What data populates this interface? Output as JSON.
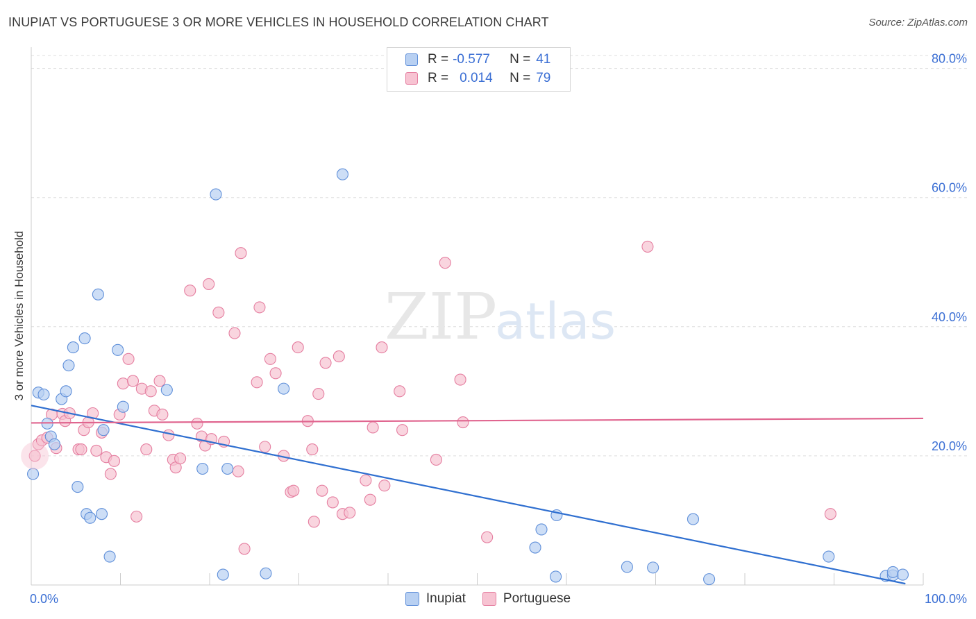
{
  "title": "INUPIAT VS PORTUGUESE 3 OR MORE VEHICLES IN HOUSEHOLD CORRELATION CHART",
  "source": "Source: ZipAtlas.com",
  "watermark": {
    "zip": "ZIP",
    "atlas": "atlas"
  },
  "legend_top": {
    "rows": [
      {
        "r_label": "R =",
        "r_value": "-0.577",
        "n_label": "N =",
        "n_value": "41",
        "fill": "#b8d0f2",
        "stroke": "#5f8fd9"
      },
      {
        "r_label": "R =",
        "r_value": "0.014",
        "n_label": "N =",
        "n_value": "79",
        "fill": "#f7c3d2",
        "stroke": "#e57ea0"
      }
    ]
  },
  "legend_bottom": [
    {
      "label": "Inupiat",
      "fill": "#b8d0f2",
      "stroke": "#5f8fd9"
    },
    {
      "label": "Portuguese",
      "fill": "#f7c3d2",
      "stroke": "#e57ea0"
    }
  ],
  "chart_data": {
    "type": "scatter",
    "title": "INUPIAT VS PORTUGUESE 3 OR MORE VEHICLES IN HOUSEHOLD CORRELATION CHART",
    "xlabel": "",
    "ylabel": "3 or more Vehicles in Household",
    "xlim": [
      0,
      100
    ],
    "ylim": [
      0,
      82
    ],
    "x_tick_labels": [
      "0.0%",
      "100.0%"
    ],
    "y_ticks": [
      20,
      40,
      60,
      80
    ],
    "y_tick_labels": [
      "20.0%",
      "40.0%",
      "60.0%",
      "80.0%"
    ],
    "grid": true,
    "legend_position": "top-center",
    "series": [
      {
        "name": "Inupiat",
        "color": "#5f8fd9",
        "fill": "#b8d0f2",
        "line_color": "#2f6fd0",
        "trend": {
          "x": [
            0,
            98
          ],
          "y": [
            27.8,
            0.2
          ]
        },
        "points": [
          [
            0.2,
            17.2
          ],
          [
            0.8,
            29.8
          ],
          [
            1.4,
            29.5
          ],
          [
            1.8,
            25
          ],
          [
            2.2,
            23
          ],
          [
            2.6,
            21.8
          ],
          [
            3.4,
            28.8
          ],
          [
            3.9,
            30
          ],
          [
            4.2,
            34
          ],
          [
            4.7,
            36.8
          ],
          [
            5.2,
            15.2
          ],
          [
            6.0,
            38.2
          ],
          [
            6.2,
            11
          ],
          [
            6.6,
            10.4
          ],
          [
            7.5,
            45
          ],
          [
            7.9,
            11
          ],
          [
            8.1,
            24
          ],
          [
            8.8,
            4.4
          ],
          [
            9.7,
            36.4
          ],
          [
            10.3,
            27.6
          ],
          [
            15.2,
            30.2
          ],
          [
            19.2,
            18
          ],
          [
            20.7,
            60.5
          ],
          [
            21.5,
            1.6
          ],
          [
            22.0,
            18
          ],
          [
            26.3,
            1.8
          ],
          [
            28.3,
            30.4
          ],
          [
            34.9,
            63.6
          ],
          [
            56.5,
            5.8
          ],
          [
            57.2,
            8.6
          ],
          [
            58.8,
            1.3
          ],
          [
            58.9,
            10.8
          ],
          [
            66.8,
            2.8
          ],
          [
            69.7,
            2.7
          ],
          [
            74.2,
            10.2
          ],
          [
            76.0,
            0.9
          ],
          [
            89.4,
            4.4
          ],
          [
            95.8,
            1.4
          ],
          [
            96.6,
            1.5
          ],
          [
            96.6,
            2.0
          ],
          [
            97.7,
            1.6
          ]
        ]
      },
      {
        "name": "Portuguese",
        "color": "#e57ea0",
        "fill": "#f7c3d2",
        "line_color": "#e0658f",
        "trend": {
          "x": [
            0,
            100
          ],
          "y": [
            25.1,
            25.8
          ]
        },
        "points": [
          [
            0.4,
            20
          ],
          [
            0.8,
            21.8
          ],
          [
            1.2,
            22.4
          ],
          [
            1.8,
            22.8
          ],
          [
            2.3,
            26.4
          ],
          [
            2.8,
            21.2
          ],
          [
            3.5,
            26.5
          ],
          [
            3.8,
            25.4
          ],
          [
            4.3,
            26.6
          ],
          [
            5.3,
            21
          ],
          [
            5.6,
            21
          ],
          [
            5.9,
            24
          ],
          [
            6.4,
            25.2
          ],
          [
            6.9,
            26.6
          ],
          [
            7.3,
            20.8
          ],
          [
            7.9,
            23.6
          ],
          [
            8.4,
            19.8
          ],
          [
            8.9,
            17.2
          ],
          [
            9.3,
            19.2
          ],
          [
            9.9,
            26.4
          ],
          [
            10.3,
            31.2
          ],
          [
            10.9,
            35
          ],
          [
            11.4,
            31.6
          ],
          [
            11.8,
            10.6
          ],
          [
            12.4,
            30.4
          ],
          [
            12.9,
            21
          ],
          [
            13.4,
            30
          ],
          [
            13.8,
            27
          ],
          [
            14.4,
            31.6
          ],
          [
            14.7,
            26.4
          ],
          [
            15.4,
            23.2
          ],
          [
            15.9,
            19.4
          ],
          [
            16.2,
            18.2
          ],
          [
            16.7,
            19.6
          ],
          [
            17.8,
            45.6
          ],
          [
            18.6,
            25
          ],
          [
            19.1,
            23
          ],
          [
            19.5,
            21.6
          ],
          [
            19.9,
            46.6
          ],
          [
            20.2,
            22.6
          ],
          [
            21.0,
            42.2
          ],
          [
            21.6,
            22.2
          ],
          [
            22.8,
            39
          ],
          [
            23.2,
            17.6
          ],
          [
            23.5,
            51.4
          ],
          [
            23.9,
            5.6
          ],
          [
            25.3,
            31.4
          ],
          [
            25.6,
            43
          ],
          [
            26.2,
            21.4
          ],
          [
            26.8,
            35
          ],
          [
            27.4,
            32.8
          ],
          [
            28.3,
            20
          ],
          [
            29.1,
            14.4
          ],
          [
            29.4,
            14.6
          ],
          [
            29.9,
            36.8
          ],
          [
            31.0,
            25.4
          ],
          [
            31.5,
            21
          ],
          [
            31.7,
            9.8
          ],
          [
            32.2,
            29.6
          ],
          [
            32.6,
            14.6
          ],
          [
            33.0,
            34.4
          ],
          [
            33.8,
            12.8
          ],
          [
            34.5,
            35.4
          ],
          [
            34.9,
            11
          ],
          [
            35.7,
            11.2
          ],
          [
            37.5,
            16.2
          ],
          [
            38.0,
            13.2
          ],
          [
            38.3,
            24.4
          ],
          [
            39.3,
            36.8
          ],
          [
            39.6,
            15.4
          ],
          [
            41.3,
            30
          ],
          [
            41.6,
            24
          ],
          [
            45.4,
            19.4
          ],
          [
            46.4,
            49.9
          ],
          [
            48.1,
            31.8
          ],
          [
            48.4,
            25.2
          ],
          [
            51.1,
            7.4
          ],
          [
            69.1,
            52.4
          ],
          [
            89.6,
            11
          ]
        ]
      }
    ]
  }
}
